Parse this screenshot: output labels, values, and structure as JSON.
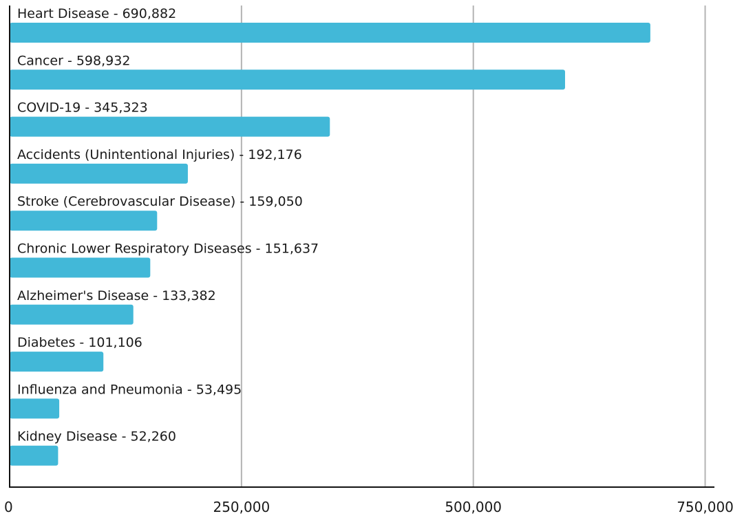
{
  "chart_data": {
    "type": "bar",
    "orientation": "horizontal",
    "title": "",
    "xlabel": "",
    "ylabel": "",
    "categories": [
      "Heart Disease - 690,882",
      "Cancer - 598,932",
      "COVID-19 - 345,323",
      "Accidents (Unintentional Injuries) - 192,176",
      "Stroke (Cerebrovascular Disease) - 159,050",
      "Chronic Lower Respiratory Diseases - 151,637",
      "Alzheimer's Disease - 133,382",
      "Diabetes - 101,106",
      "Influenza and Pneumonia - 53,495",
      "Kidney Disease - 52,260"
    ],
    "values": [
      690882,
      598932,
      345323,
      192176,
      159050,
      151637,
      133382,
      101106,
      53495,
      52260
    ],
    "xlim": [
      0,
      760000
    ],
    "x_ticks": [
      0,
      250000,
      500000,
      750000
    ],
    "x_tick_labels": [
      "0",
      "250,000",
      "500,000",
      "750,000"
    ],
    "grid": true,
    "legend": "none",
    "bar_color": "#42b8d8"
  }
}
